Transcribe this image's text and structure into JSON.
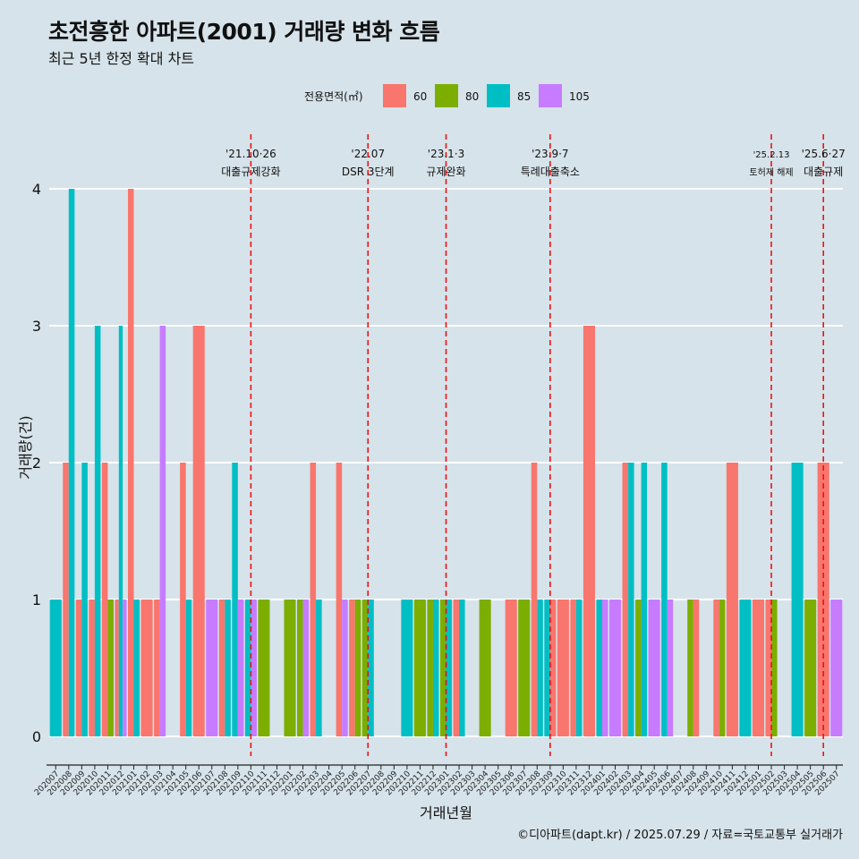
{
  "header": {
    "title": "초전흥한 아파트(2001) 거래량 변화 흐름",
    "subtitle": "최근 5년 한정 확대 차트"
  },
  "footer": {
    "caption": "©디아파트(dapt.kr) / 2025.07.29 / 자료=국토교통부 실거래가"
  },
  "chart_data": {
    "type": "bar",
    "xlabel": "거래년월",
    "ylabel": "거래량(건)",
    "ylim": [
      -0.2,
      4.3
    ],
    "yticks": [
      0,
      1,
      2,
      3,
      4
    ],
    "legend": {
      "title": "전용면적(㎡)",
      "placement": "top",
      "entries": [
        {
          "name": "60",
          "color": "#F8766D"
        },
        {
          "name": "80",
          "color": "#7CAE00"
        },
        {
          "name": "85",
          "color": "#00BFC4"
        },
        {
          "name": "105",
          "color": "#C77CFF"
        }
      ]
    },
    "categories": [
      "202007",
      "202008",
      "202009",
      "202010",
      "202011",
      "202012",
      "202101",
      "202102",
      "202103",
      "202104",
      "202105",
      "202106",
      "202107",
      "202108",
      "202109",
      "202110",
      "202111",
      "202112",
      "202201",
      "202202",
      "202203",
      "202204",
      "202205",
      "202206",
      "202207",
      "202208",
      "202209",
      "202210",
      "202211",
      "202212",
      "202301",
      "202302",
      "202303",
      "202304",
      "202305",
      "202306",
      "202307",
      "202308",
      "202309",
      "202310",
      "202311",
      "202312",
      "202401",
      "202402",
      "202403",
      "202404",
      "202405",
      "202406",
      "202407",
      "202408",
      "202409",
      "202410",
      "202411",
      "202412",
      "202501",
      "202502",
      "202503",
      "202504",
      "202505",
      "202506",
      "202507"
    ],
    "bars": [
      {
        "month": "202007",
        "series": [
          {
            "name": "85",
            "value": 1
          }
        ]
      },
      {
        "month": "202008",
        "series": [
          {
            "name": "60",
            "value": 2
          },
          {
            "name": "85",
            "value": 4
          }
        ]
      },
      {
        "month": "202009",
        "series": [
          {
            "name": "60",
            "value": 1
          },
          {
            "name": "85",
            "value": 2
          }
        ]
      },
      {
        "month": "202010",
        "series": [
          {
            "name": "60",
            "value": 1
          },
          {
            "name": "85",
            "value": 3
          }
        ]
      },
      {
        "month": "202011",
        "series": [
          {
            "name": "60",
            "value": 2
          },
          {
            "name": "80",
            "value": 1
          }
        ]
      },
      {
        "month": "202012",
        "series": [
          {
            "name": "60",
            "value": 1
          },
          {
            "name": "85",
            "value": 3
          },
          {
            "name": "105",
            "value": 1
          }
        ]
      },
      {
        "month": "202101",
        "series": [
          {
            "name": "60",
            "value": 4
          },
          {
            "name": "85",
            "value": 1
          }
        ]
      },
      {
        "month": "202102",
        "series": [
          {
            "name": "60",
            "value": 1
          }
        ]
      },
      {
        "month": "202103",
        "series": [
          {
            "name": "60",
            "value": 1
          },
          {
            "name": "105",
            "value": 3
          }
        ]
      },
      {
        "month": "202104",
        "series": []
      },
      {
        "month": "202105",
        "series": [
          {
            "name": "60",
            "value": 2
          },
          {
            "name": "85",
            "value": 1
          }
        ]
      },
      {
        "month": "202106",
        "series": [
          {
            "name": "60",
            "value": 3
          }
        ]
      },
      {
        "month": "202107",
        "series": [
          {
            "name": "105",
            "value": 1
          }
        ]
      },
      {
        "month": "202108",
        "series": [
          {
            "name": "60",
            "value": 1
          },
          {
            "name": "85",
            "value": 1
          }
        ]
      },
      {
        "month": "202109",
        "series": [
          {
            "name": "85",
            "value": 2
          },
          {
            "name": "105",
            "value": 1
          }
        ]
      },
      {
        "month": "202110",
        "series": [
          {
            "name": "85",
            "value": 1
          },
          {
            "name": "105",
            "value": 1
          }
        ]
      },
      {
        "month": "202111",
        "series": [
          {
            "name": "80",
            "value": 1
          }
        ]
      },
      {
        "month": "202112",
        "series": []
      },
      {
        "month": "202201",
        "series": [
          {
            "name": "80",
            "value": 1
          }
        ]
      },
      {
        "month": "202202",
        "series": [
          {
            "name": "80",
            "value": 1
          },
          {
            "name": "105",
            "value": 1
          }
        ]
      },
      {
        "month": "202203",
        "series": [
          {
            "name": "60",
            "value": 2
          },
          {
            "name": "85",
            "value": 1
          }
        ]
      },
      {
        "month": "202204",
        "series": []
      },
      {
        "month": "202205",
        "series": [
          {
            "name": "60",
            "value": 2
          },
          {
            "name": "105",
            "value": 1
          }
        ]
      },
      {
        "month": "202206",
        "series": [
          {
            "name": "60",
            "value": 1
          },
          {
            "name": "80",
            "value": 1
          }
        ]
      },
      {
        "month": "202207",
        "series": [
          {
            "name": "80",
            "value": 1
          },
          {
            "name": "85",
            "value": 1
          }
        ]
      },
      {
        "month": "202208",
        "series": []
      },
      {
        "month": "202209",
        "series": []
      },
      {
        "month": "202210",
        "series": [
          {
            "name": "85",
            "value": 1
          }
        ]
      },
      {
        "month": "202211",
        "series": [
          {
            "name": "80",
            "value": 1
          }
        ]
      },
      {
        "month": "202212",
        "series": [
          {
            "name": "80",
            "value": 1
          },
          {
            "name": "85",
            "value": 1
          }
        ]
      },
      {
        "month": "202301",
        "series": [
          {
            "name": "80",
            "value": 1
          },
          {
            "name": "85",
            "value": 1
          }
        ]
      },
      {
        "month": "202302",
        "series": [
          {
            "name": "60",
            "value": 1
          },
          {
            "name": "85",
            "value": 1
          }
        ]
      },
      {
        "month": "202303",
        "series": []
      },
      {
        "month": "202304",
        "series": [
          {
            "name": "80",
            "value": 1
          }
        ]
      },
      {
        "month": "202305",
        "series": []
      },
      {
        "month": "202306",
        "series": [
          {
            "name": "60",
            "value": 1
          }
        ]
      },
      {
        "month": "202307",
        "series": [
          {
            "name": "80",
            "value": 1
          }
        ]
      },
      {
        "month": "202308",
        "series": [
          {
            "name": "60",
            "value": 2
          },
          {
            "name": "85",
            "value": 1
          }
        ]
      },
      {
        "month": "202309",
        "series": [
          {
            "name": "85",
            "value": 1
          },
          {
            "name": "60",
            "value": 1
          }
        ]
      },
      {
        "month": "202310",
        "series": [
          {
            "name": "60",
            "value": 1
          }
        ]
      },
      {
        "month": "202311",
        "series": [
          {
            "name": "60",
            "value": 1
          },
          {
            "name": "85",
            "value": 1
          }
        ]
      },
      {
        "month": "202312",
        "series": [
          {
            "name": "60",
            "value": 3
          }
        ]
      },
      {
        "month": "202401",
        "series": [
          {
            "name": "85",
            "value": 1
          },
          {
            "name": "105",
            "value": 1
          }
        ]
      },
      {
        "month": "202402",
        "series": [
          {
            "name": "105",
            "value": 1
          }
        ]
      },
      {
        "month": "202403",
        "series": [
          {
            "name": "60",
            "value": 2
          },
          {
            "name": "85",
            "value": 2
          }
        ]
      },
      {
        "month": "202404",
        "series": [
          {
            "name": "80",
            "value": 1
          },
          {
            "name": "85",
            "value": 2
          }
        ]
      },
      {
        "month": "202405",
        "series": [
          {
            "name": "105",
            "value": 1
          }
        ]
      },
      {
        "month": "202406",
        "series": [
          {
            "name": "85",
            "value": 2
          },
          {
            "name": "105",
            "value": 1
          }
        ]
      },
      {
        "month": "202407",
        "series": []
      },
      {
        "month": "202408",
        "series": [
          {
            "name": "80",
            "value": 1
          },
          {
            "name": "60",
            "value": 1
          }
        ]
      },
      {
        "month": "202409",
        "series": []
      },
      {
        "month": "202410",
        "series": [
          {
            "name": "60",
            "value": 1
          },
          {
            "name": "80",
            "value": 1
          }
        ]
      },
      {
        "month": "202411",
        "series": [
          {
            "name": "60",
            "value": 2
          }
        ]
      },
      {
        "month": "202412",
        "series": [
          {
            "name": "85",
            "value": 1
          }
        ]
      },
      {
        "month": "202501",
        "series": [
          {
            "name": "60",
            "value": 1
          }
        ]
      },
      {
        "month": "202502",
        "series": [
          {
            "name": "60",
            "value": 1
          },
          {
            "name": "80",
            "value": 1
          }
        ]
      },
      {
        "month": "202503",
        "series": []
      },
      {
        "month": "202504",
        "series": [
          {
            "name": "85",
            "value": 2
          }
        ]
      },
      {
        "month": "202505",
        "series": [
          {
            "name": "80",
            "value": 1
          }
        ]
      },
      {
        "month": "202506",
        "series": [
          {
            "name": "60",
            "value": 2
          }
        ]
      },
      {
        "month": "202507",
        "series": [
          {
            "name": "105",
            "value": 1
          }
        ]
      }
    ],
    "events": [
      {
        "month": "202110",
        "line1": "'21.10·26",
        "line2": "대출규제강화",
        "small": false
      },
      {
        "month": "202207",
        "line1": "'22.07",
        "line2": "DSR 3단계",
        "small": false
      },
      {
        "month": "202301",
        "line1": "'23.1·3",
        "line2": "규제완화",
        "small": false
      },
      {
        "month": "202309",
        "line1": "'23.9·7",
        "line2": "특례대출축소",
        "small": false
      },
      {
        "month": "202502",
        "line1": "'25.2.13",
        "line2": "토허제 해제",
        "small": true
      },
      {
        "month": "202506",
        "line1": "'25.6·27",
        "line2": "대출규제",
        "small": false
      }
    ],
    "grid": true
  }
}
